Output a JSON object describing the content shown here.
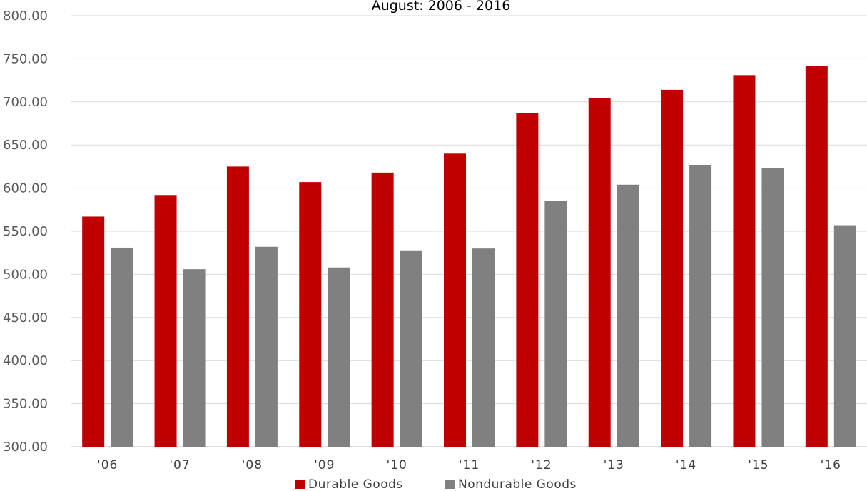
{
  "chart_data": {
    "type": "bar",
    "subtitle": "August:  2006 - 2016",
    "categories": [
      "'06",
      "'07",
      "'08",
      "'09",
      "'10",
      "'11",
      "'12",
      "'13",
      "'14",
      "'15",
      "'16"
    ],
    "series": [
      {
        "name": "Durable Goods",
        "color": "#c00000",
        "values": [
          567,
          592,
          625,
          607,
          618,
          640,
          687,
          704,
          714,
          731,
          742
        ]
      },
      {
        "name": "Nondurable Goods",
        "color": "#808080",
        "values": [
          531,
          506,
          532,
          508,
          527,
          530,
          585,
          604,
          627,
          623,
          557
        ]
      }
    ],
    "ylim": [
      300,
      800
    ],
    "yticks": [
      "300.00",
      "350.00",
      "400.00",
      "450.00",
      "500.00",
      "550.00",
      "600.00",
      "650.00",
      "700.00",
      "750.00",
      "800.00"
    ],
    "grid": true,
    "legend_position": "bottom"
  }
}
